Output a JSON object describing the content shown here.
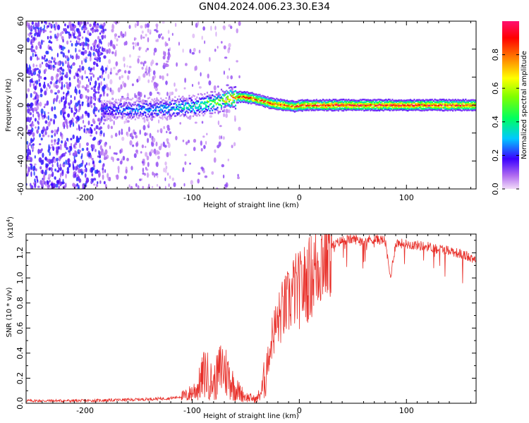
{
  "chart_data": [
    {
      "type": "heatmap",
      "title": "GN04.2024.006.23.30.E34",
      "xlabel": "Height of straight line (km)",
      "ylabel": "Frequency (Hz)",
      "xlim": [
        -255,
        165
      ],
      "ylim": [
        -60,
        60
      ],
      "xticks": [
        -200,
        -100,
        0,
        100
      ],
      "yticks": [
        -60,
        -40,
        -20,
        0,
        20,
        40,
        60
      ],
      "ridge": {
        "x": [
          -180,
          -150,
          -120,
          -100,
          -80,
          -65,
          -55,
          -45,
          -35,
          -25,
          -15,
          -5,
          5,
          50,
          100,
          165
        ],
        "y": [
          -3,
          -3,
          -2,
          -1,
          2,
          5,
          6,
          5,
          3,
          1,
          0,
          -1,
          0,
          0,
          0,
          0
        ],
        "amplitude": [
          0.25,
          0.3,
          0.35,
          0.4,
          0.55,
          0.75,
          0.9,
          0.85,
          0.8,
          0.85,
          0.9,
          0.85,
          0.9,
          0.95,
          0.95,
          0.9
        ]
      },
      "colorbar": {
        "label": "Normalized spectral amplitude",
        "range": [
          0,
          1
        ],
        "ticks": [
          "0.0",
          "0.2",
          "0.4",
          "0.6",
          "0.8"
        ]
      }
    },
    {
      "type": "line",
      "xlabel": "Height of straight line (km)",
      "ylabel": "SNR (10 * v/v)",
      "scale_label": "(x10",
      "scale_exp": "4",
      "scale_close": ")",
      "color": "#e8302a",
      "xlim": [
        -255,
        165
      ],
      "ylim": [
        0,
        1.35
      ],
      "xticks": [
        -200,
        -100,
        0,
        100
      ],
      "yticks": [
        "0.0",
        "0.2",
        "0.4",
        "0.6",
        "0.8",
        "1.0",
        "1.2"
      ],
      "series": [
        {
          "name": "SNR",
          "x": [
            -255,
            -200,
            -150,
            -120,
            -105,
            -95,
            -88,
            -80,
            -72,
            -65,
            -60,
            -50,
            -40,
            -35,
            -30,
            -25,
            -20,
            -15,
            -10,
            -5,
            0,
            10,
            20,
            30,
            40,
            50,
            60,
            70,
            80,
            85,
            90,
            100,
            120,
            140,
            165
          ],
          "y": [
            0.02,
            0.02,
            0.03,
            0.04,
            0.06,
            0.12,
            0.25,
            0.15,
            0.3,
            0.2,
            0.12,
            0.05,
            0.03,
            0.1,
            0.3,
            0.55,
            0.65,
            0.75,
            0.8,
            0.9,
            0.9,
            1.0,
            1.15,
            1.25,
            1.3,
            1.31,
            1.3,
            1.31,
            1.3,
            1.0,
            1.28,
            1.27,
            1.25,
            1.22,
            1.15
          ]
        }
      ]
    }
  ]
}
